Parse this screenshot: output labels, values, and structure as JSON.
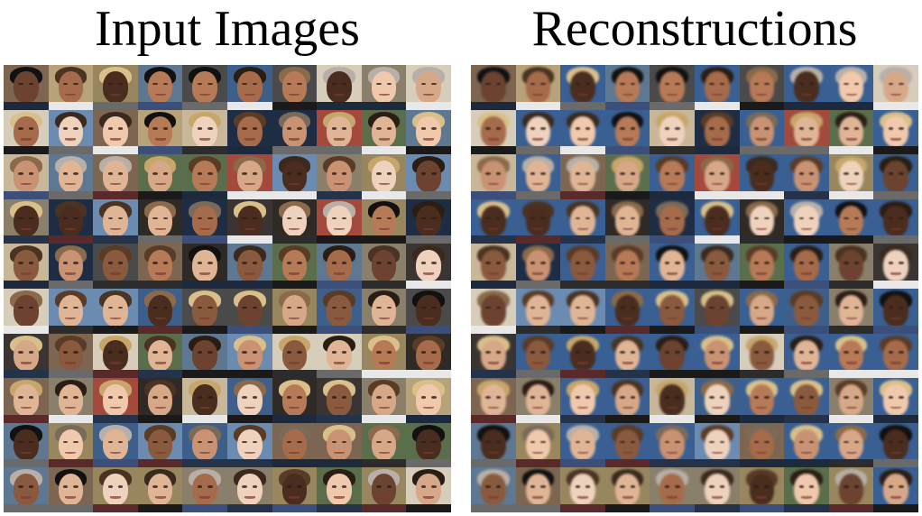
{
  "panels": [
    {
      "title": "Input Images"
    },
    {
      "title": "Reconstructions"
    }
  ],
  "grid": {
    "rows": 10,
    "cols": 10
  }
}
